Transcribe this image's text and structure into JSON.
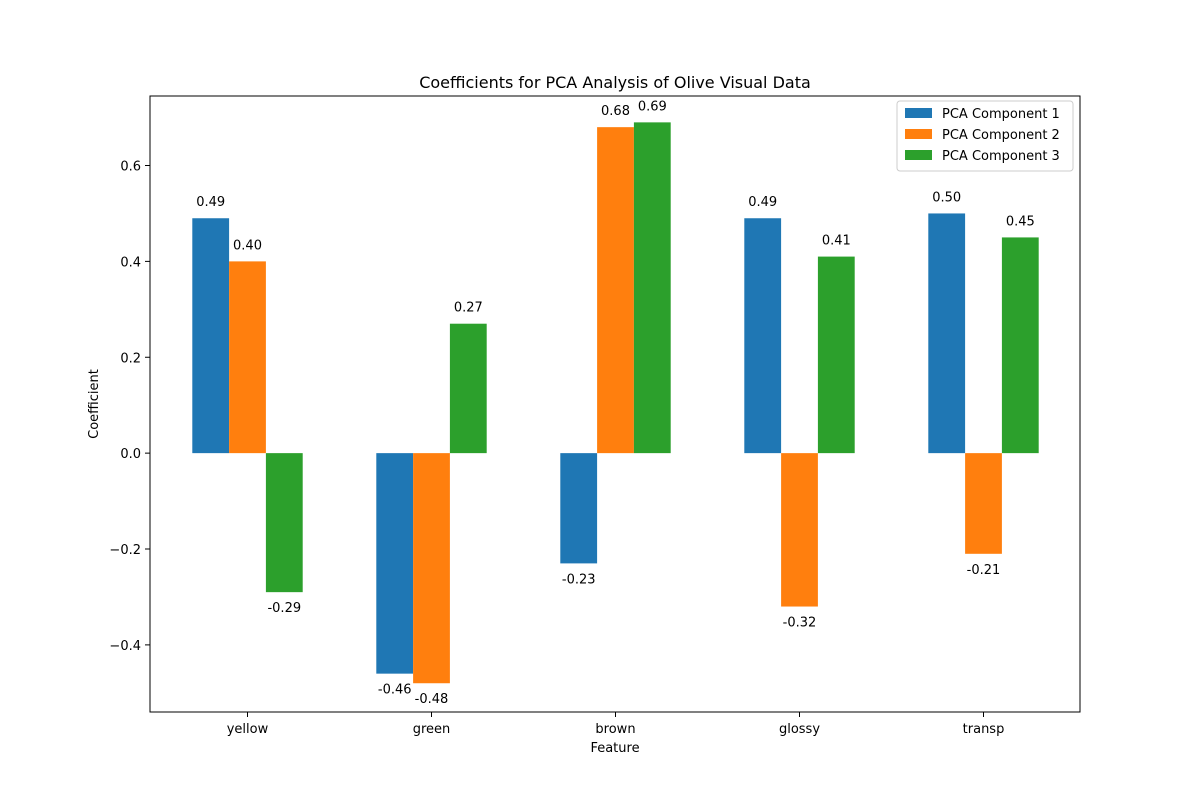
{
  "chart_data": {
    "type": "bar",
    "title": "Coefficients for PCA Analysis of Olive Visual Data",
    "xlabel": "Feature",
    "ylabel": "Coefficient",
    "categories": [
      "yellow",
      "green",
      "brown",
      "glossy",
      "transp"
    ],
    "series": [
      {
        "name": "PCA Component 1",
        "color": "#1f77b4",
        "values": [
          0.49,
          -0.46,
          -0.23,
          0.49,
          0.5
        ]
      },
      {
        "name": "PCA Component 2",
        "color": "#ff7f0e",
        "values": [
          0.4,
          -0.48,
          0.68,
          -0.32,
          -0.21
        ]
      },
      {
        "name": "PCA Component 3",
        "color": "#2ca02c",
        "values": [
          -0.29,
          0.27,
          0.69,
          0.41,
          0.45
        ]
      }
    ],
    "value_labels": [
      [
        "0.49",
        "-0.46",
        "-0.23",
        "0.49",
        "0.50"
      ],
      [
        "0.40",
        "-0.48",
        "0.68",
        "-0.32",
        "-0.21"
      ],
      [
        "-0.29",
        "0.27",
        "0.69",
        "0.41",
        "0.45"
      ]
    ],
    "ylim": [
      -0.54,
      0.745
    ],
    "yticks": [
      -0.4,
      -0.2,
      0.0,
      0.2,
      0.4,
      0.6
    ],
    "ytick_labels": [
      "−0.4",
      "−0.2",
      "0.0",
      "0.2",
      "0.4",
      "0.6"
    ],
    "grid": false,
    "legend_position": "top-right"
  }
}
